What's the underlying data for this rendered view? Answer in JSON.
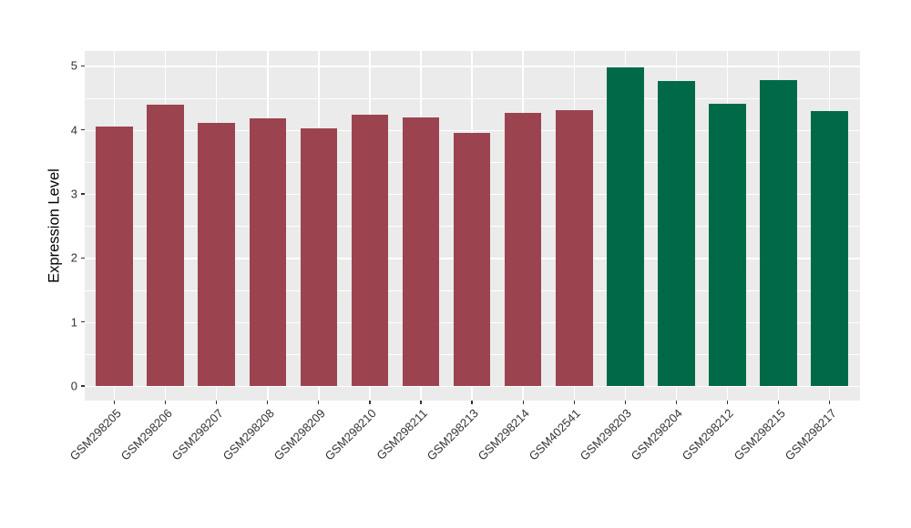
{
  "figure": {
    "background": "#FFFFFF",
    "panel_bg": "#EBEBEB",
    "grid_color": "#FFFFFF",
    "axis_text_color": "#333333",
    "axis_title_color": "#000000",
    "tick_color": "#333333"
  },
  "chart_data": {
    "type": "bar",
    "title": "",
    "xlabel": "",
    "ylabel": "Expression Level",
    "categories": [
      "GSM298205",
      "GSM298206",
      "GSM298207",
      "GSM298208",
      "GSM298209",
      "GSM298210",
      "GSM298211",
      "GSM298213",
      "GSM298214",
      "GSM402541",
      "GSM298203",
      "GSM298204",
      "GSM298212",
      "GSM298215",
      "GSM298217"
    ],
    "values": [
      4.06,
      4.4,
      4.11,
      4.18,
      4.03,
      4.24,
      4.2,
      3.96,
      4.27,
      4.31,
      4.98,
      4.77,
      4.41,
      4.78,
      4.29
    ],
    "bar_colors": [
      "#9C4350",
      "#9C4350",
      "#9C4350",
      "#9C4350",
      "#9C4350",
      "#9C4350",
      "#9C4350",
      "#9C4350",
      "#9C4350",
      "#9C4350",
      "#006A48",
      "#006A48",
      "#006A48",
      "#006A48",
      "#006A48"
    ],
    "group_colors": {
      "red_group": "#9C4350",
      "green_group": "#006A48"
    },
    "y_ticks": [
      0,
      1,
      2,
      3,
      4,
      5
    ],
    "y_minor_ticks": [
      0.5,
      1.5,
      2.5,
      3.5,
      4.5
    ],
    "ylim": [
      -0.23,
      5.23
    ],
    "grid": true,
    "legend": "none",
    "x_tick_rotation_deg": 45
  }
}
